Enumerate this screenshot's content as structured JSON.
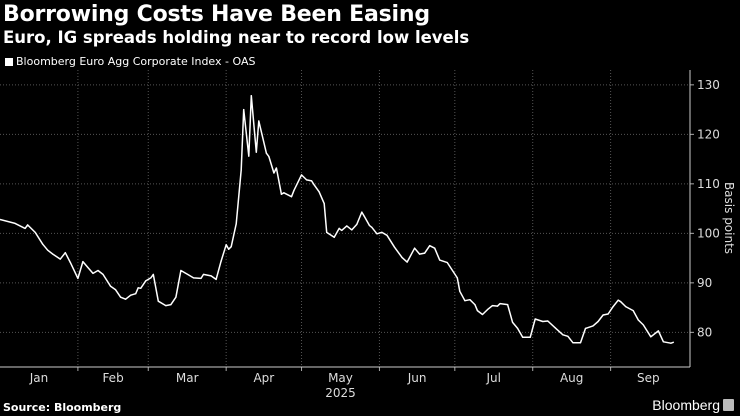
{
  "header": {
    "title": "Borrowing Costs Have Been Easing",
    "subtitle": "Euro, IG spreads holding near to record low levels"
  },
  "footer": {
    "source": "Source: Bloomberg",
    "brand": "Bloomberg"
  },
  "colors": {
    "background": "#000000",
    "line": "#ffffff",
    "grid": "#555555"
  },
  "chart_data": {
    "type": "line",
    "title": "Borrowing Costs Have Been Easing",
    "subtitle": "Euro, IG spreads holding near to record low levels",
    "ylabel": "Basis points",
    "xlabel": "2025",
    "y_axis_side": "right",
    "ylim": [
      73,
      133
    ],
    "yticks": [
      80,
      90,
      100,
      110,
      120,
      130
    ],
    "xlim": [
      "2025-01-01",
      "2025-10-01"
    ],
    "xticks": [
      "Jan",
      "Feb",
      "Mar",
      "Apr",
      "May",
      "Jun",
      "Jul",
      "Aug",
      "Sep"
    ],
    "year_label": "2025",
    "grid": true,
    "legend_position": "top-left",
    "series": [
      {
        "name": "Bloomberg Euro Agg Corporate Index - OAS",
        "color": "#ffffff",
        "points": [
          [
            "2025-01-01",
            102.8
          ],
          [
            "2025-01-07",
            102.0
          ],
          [
            "2025-01-11",
            101.0
          ],
          [
            "2025-01-12",
            101.7
          ],
          [
            "2025-01-15",
            100.2
          ],
          [
            "2025-01-18",
            97.8
          ],
          [
            "2025-01-20",
            96.6
          ],
          [
            "2025-01-22",
            95.8
          ],
          [
            "2025-01-25",
            94.8
          ],
          [
            "2025-01-27",
            96.1
          ],
          [
            "2025-01-29",
            94.1
          ],
          [
            "2025-02-01",
            90.9
          ],
          [
            "2025-02-03",
            94.3
          ],
          [
            "2025-02-05",
            93.1
          ],
          [
            "2025-02-07",
            91.9
          ],
          [
            "2025-02-09",
            92.5
          ],
          [
            "2025-02-11",
            91.7
          ],
          [
            "2025-02-14",
            89.3
          ],
          [
            "2025-02-16",
            88.6
          ],
          [
            "2025-02-18",
            87.1
          ],
          [
            "2025-02-20",
            86.7
          ],
          [
            "2025-02-22",
            87.5
          ],
          [
            "2025-02-24",
            87.8
          ],
          [
            "2025-02-25",
            89.0
          ],
          [
            "2025-02-26",
            88.9
          ],
          [
            "2025-02-28",
            90.4
          ],
          [
            "2025-03-02",
            91.0
          ],
          [
            "2025-03-03",
            91.7
          ],
          [
            "2025-03-05",
            86.3
          ],
          [
            "2025-03-08",
            85.4
          ],
          [
            "2025-03-10",
            85.6
          ],
          [
            "2025-03-12",
            87.1
          ],
          [
            "2025-03-14",
            92.5
          ],
          [
            "2025-03-17",
            91.6
          ],
          [
            "2025-03-19",
            91.0
          ],
          [
            "2025-03-22",
            90.9
          ],
          [
            "2025-03-23",
            91.7
          ],
          [
            "2025-03-26",
            91.4
          ],
          [
            "2025-03-28",
            90.7
          ],
          [
            "2025-03-30",
            94.4
          ],
          [
            "2025-04-01",
            97.7
          ],
          [
            "2025-04-02",
            96.8
          ],
          [
            "2025-04-03",
            97.3
          ],
          [
            "2025-04-05",
            101.9
          ],
          [
            "2025-04-07",
            112.8
          ],
          [
            "2025-04-08",
            125.0
          ],
          [
            "2025-04-10",
            115.6
          ],
          [
            "2025-04-11",
            127.8
          ],
          [
            "2025-04-13",
            116.4
          ],
          [
            "2025-04-14",
            122.7
          ],
          [
            "2025-04-17",
            116.2
          ],
          [
            "2025-04-18",
            115.5
          ],
          [
            "2025-04-20",
            112.2
          ],
          [
            "2025-04-21",
            113.2
          ],
          [
            "2025-04-23",
            107.9
          ],
          [
            "2025-04-24",
            108.2
          ],
          [
            "2025-04-27",
            107.4
          ],
          [
            "2025-04-28",
            108.7
          ],
          [
            "2025-05-01",
            111.8
          ],
          [
            "2025-05-03",
            110.8
          ],
          [
            "2025-05-05",
            110.6
          ],
          [
            "2025-05-06",
            109.8
          ],
          [
            "2025-05-08",
            108.4
          ],
          [
            "2025-05-10",
            106.0
          ],
          [
            "2025-05-11",
            100.2
          ],
          [
            "2025-05-14",
            99.2
          ],
          [
            "2025-05-16",
            101.0
          ],
          [
            "2025-05-17",
            100.6
          ],
          [
            "2025-05-19",
            101.5
          ],
          [
            "2025-05-21",
            100.7
          ],
          [
            "2025-05-23",
            101.8
          ],
          [
            "2025-05-25",
            104.3
          ],
          [
            "2025-05-26",
            103.4
          ],
          [
            "2025-05-28",
            101.6
          ],
          [
            "2025-05-29",
            101.2
          ],
          [
            "2025-05-31",
            99.9
          ],
          [
            "2025-06-02",
            100.2
          ],
          [
            "2025-06-04",
            99.6
          ],
          [
            "2025-06-07",
            97.2
          ],
          [
            "2025-06-10",
            95.1
          ],
          [
            "2025-06-12",
            94.2
          ],
          [
            "2025-06-15",
            97.0
          ],
          [
            "2025-06-17",
            95.8
          ],
          [
            "2025-06-19",
            96.0
          ],
          [
            "2025-06-21",
            97.5
          ],
          [
            "2025-06-23",
            97.0
          ],
          [
            "2025-06-25",
            94.6
          ],
          [
            "2025-06-28",
            94.1
          ],
          [
            "2025-07-02",
            91.0
          ],
          [
            "2025-07-03",
            88.3
          ],
          [
            "2025-07-05",
            86.4
          ],
          [
            "2025-07-07",
            86.6
          ],
          [
            "2025-07-09",
            85.6
          ],
          [
            "2025-07-10",
            84.4
          ],
          [
            "2025-07-12",
            83.6
          ],
          [
            "2025-07-14",
            84.6
          ],
          [
            "2025-07-16",
            85.4
          ],
          [
            "2025-07-18",
            85.3
          ],
          [
            "2025-07-19",
            85.8
          ],
          [
            "2025-07-22",
            85.6
          ],
          [
            "2025-07-24",
            82.0
          ],
          [
            "2025-07-26",
            80.8
          ],
          [
            "2025-07-28",
            79.0
          ],
          [
            "2025-07-31",
            79.0
          ],
          [
            "2025-08-02",
            82.7
          ],
          [
            "2025-08-05",
            82.2
          ],
          [
            "2025-08-07",
            82.3
          ],
          [
            "2025-08-10",
            80.9
          ],
          [
            "2025-08-13",
            79.5
          ],
          [
            "2025-08-15",
            79.2
          ],
          [
            "2025-08-17",
            77.9
          ],
          [
            "2025-08-20",
            77.9
          ],
          [
            "2025-08-22",
            80.8
          ],
          [
            "2025-08-25",
            81.3
          ],
          [
            "2025-08-27",
            82.2
          ],
          [
            "2025-08-29",
            83.5
          ],
          [
            "2025-08-31",
            83.7
          ],
          [
            "2025-09-02",
            85.2
          ],
          [
            "2025-09-04",
            86.5
          ],
          [
            "2025-09-05",
            86.2
          ],
          [
            "2025-09-07",
            85.2
          ],
          [
            "2025-09-10",
            84.4
          ],
          [
            "2025-09-12",
            82.5
          ],
          [
            "2025-09-14",
            81.5
          ],
          [
            "2025-09-17",
            79.1
          ],
          [
            "2025-09-20",
            80.3
          ],
          [
            "2025-09-22",
            78.1
          ],
          [
            "2025-09-25",
            77.8
          ],
          [
            "2025-09-26",
            78.0
          ]
        ]
      }
    ]
  }
}
